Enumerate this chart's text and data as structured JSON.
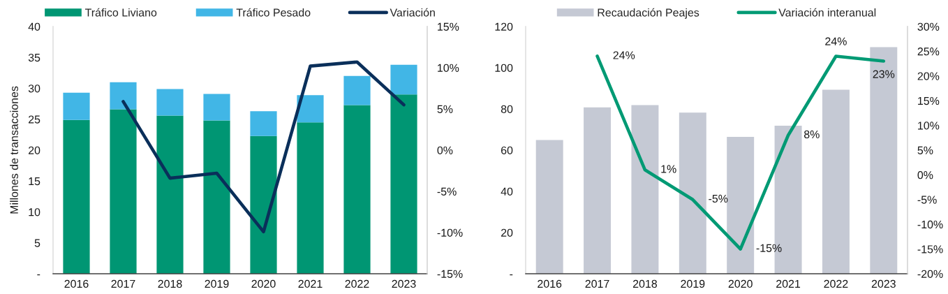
{
  "chart_data": [
    {
      "type": "bar",
      "stacked": true,
      "categories": [
        "2016",
        "2017",
        "2018",
        "2019",
        "2020",
        "2021",
        "2022",
        "2023"
      ],
      "ylabel": "Millones de transacciones",
      "ylim": [
        0,
        40
      ],
      "yticks": [
        {
          "value": 0,
          "label": "-"
        },
        5,
        10,
        15,
        20,
        25,
        30,
        35,
        40
      ],
      "y2lim": [
        -15,
        15
      ],
      "y2ticks": [
        {
          "value": -15,
          "label": "-15%"
        },
        {
          "value": -10,
          "label": "-10%"
        },
        {
          "value": -5,
          "label": "-5%"
        },
        {
          "value": 0,
          "label": "0%"
        },
        {
          "value": 5,
          "label": "5%"
        },
        {
          "value": 10,
          "label": "10%"
        },
        {
          "value": 15,
          "label": "15%"
        }
      ],
      "legend": "top",
      "series": [
        {
          "name": "Tráfico Liviano",
          "color": "#009673",
          "values": [
            24.9,
            26.6,
            25.6,
            24.8,
            22.3,
            24.5,
            27.3,
            29.0
          ]
        },
        {
          "name": "Tráfico Pesado",
          "color": "#41b6e6",
          "values": [
            4.4,
            4.4,
            4.3,
            4.3,
            4.0,
            4.4,
            4.7,
            4.8
          ]
        },
        {
          "name": "Variación",
          "type": "line",
          "axis": "y2",
          "color": "#0a2f5a",
          "values": [
            null,
            5.9,
            -3.4,
            -2.8,
            -9.9,
            10.2,
            10.7,
            5.5
          ]
        }
      ]
    },
    {
      "type": "bar",
      "categories": [
        "2016",
        "2017",
        "2018",
        "2019",
        "2020",
        "2021",
        "2022",
        "2023"
      ],
      "ylim": [
        0,
        120
      ],
      "yticks": [
        {
          "value": 0,
          "label": "-"
        },
        20,
        40,
        60,
        80,
        100,
        120
      ],
      "y2lim": [
        -20,
        30
      ],
      "y2ticks": [
        {
          "value": -20,
          "label": "-20%"
        },
        {
          "value": -15,
          "label": "-15%"
        },
        {
          "value": -10,
          "label": "-10%"
        },
        {
          "value": -5,
          "label": "-5%"
        },
        {
          "value": 0,
          "label": "0%"
        },
        {
          "value": 5,
          "label": "5%"
        },
        {
          "value": 10,
          "label": "10%"
        },
        {
          "value": 15,
          "label": "15%"
        },
        {
          "value": 20,
          "label": "20%"
        },
        {
          "value": 25,
          "label": "25%"
        },
        {
          "value": 30,
          "label": "30%"
        }
      ],
      "legend": "top",
      "series": [
        {
          "name": "Recaudación Peajes",
          "color": "#c5c9d4",
          "values": [
            64.9,
            80.8,
            81.9,
            78.2,
            66.4,
            71.9,
            89.3,
            110.0
          ]
        },
        {
          "name": "Variación interanual",
          "type": "line",
          "axis": "y2",
          "color": "#009a74",
          "values": [
            null,
            24,
            1,
            -5,
            -15,
            8,
            24,
            23
          ],
          "value_labels": [
            null,
            "24%",
            "1%",
            "-5%",
            "-15%",
            "8%",
            "24%",
            "23%"
          ]
        }
      ]
    }
  ]
}
